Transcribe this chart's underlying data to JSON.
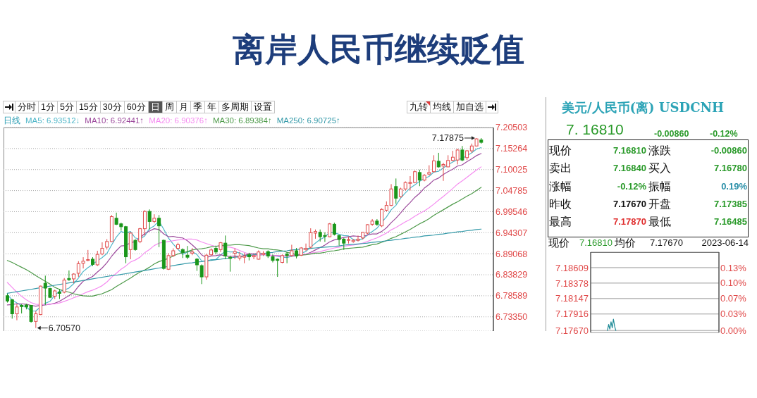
{
  "chart_data": [
    {
      "type": "candlestick",
      "title": "离岸人民币继续贬值",
      "legend_title": "日线",
      "legend": "top left",
      "grid": "y",
      "categories": [
        null,
        null,
        null,
        null,
        null,
        null,
        null,
        null,
        null,
        null,
        null,
        null,
        null,
        null,
        null,
        null,
        null,
        null,
        null,
        null,
        null,
        null,
        null,
        null,
        null,
        null,
        null,
        null,
        null,
        null,
        null,
        null,
        null,
        null,
        null,
        null,
        null,
        null,
        null,
        null,
        null,
        null,
        null,
        null,
        null,
        null,
        null,
        null,
        null,
        null,
        null,
        null,
        null,
        null,
        null,
        null,
        null,
        null,
        null,
        null,
        null,
        null,
        null,
        null,
        null,
        null,
        null,
        null,
        null,
        null,
        null,
        null,
        null,
        null,
        null,
        null,
        null,
        null,
        null,
        null,
        null,
        null,
        null,
        null,
        null,
        null,
        null,
        null,
        null,
        null,
        null,
        null,
        null,
        null,
        null,
        null,
        null,
        null,
        null,
        null,
        null
      ],
      "ohlc": [
        [
          6.786,
          6.791,
          6.769,
          6.773
        ],
        [
          6.776,
          6.778,
          6.729,
          6.741
        ],
        [
          6.741,
          6.766,
          6.725,
          6.758
        ],
        [
          6.762,
          6.765,
          6.742,
          6.759
        ],
        [
          6.763,
          6.766,
          6.752,
          6.758
        ],
        [
          6.762,
          6.763,
          6.719,
          6.722
        ],
        [
          6.722,
          6.748,
          6.7057,
          6.741
        ],
        [
          6.739,
          6.811,
          6.738,
          6.81
        ],
        [
          6.817,
          6.836,
          6.763,
          6.805
        ],
        [
          6.804,
          6.806,
          6.78,
          6.782
        ],
        [
          6.785,
          6.801,
          6.778,
          6.798
        ],
        [
          6.795,
          6.803,
          6.778,
          6.792
        ],
        [
          6.795,
          6.83,
          6.792,
          6.825
        ],
        [
          6.829,
          6.849,
          6.823,
          6.826
        ],
        [
          6.828,
          6.842,
          6.817,
          6.84
        ],
        [
          6.842,
          6.872,
          6.833,
          6.866
        ],
        [
          6.867,
          6.882,
          6.854,
          6.872
        ],
        [
          6.874,
          6.9,
          6.872,
          6.876
        ],
        [
          6.877,
          6.882,
          6.86,
          6.864
        ],
        [
          6.863,
          6.898,
          6.86,
          6.889
        ],
        [
          6.89,
          6.919,
          6.887,
          6.904
        ],
        [
          6.907,
          6.927,
          6.901,
          6.921
        ],
        [
          6.921,
          6.987,
          6.92,
          6.983
        ],
        [
          6.979,
          6.993,
          6.962,
          6.964
        ],
        [
          6.965,
          6.968,
          6.948,
          6.958
        ],
        [
          6.958,
          6.96,
          6.867,
          6.883
        ],
        [
          6.901,
          6.945,
          6.877,
          6.942
        ],
        [
          6.924,
          6.927,
          6.898,
          6.901
        ],
        [
          6.921,
          6.955,
          6.917,
          6.953
        ],
        [
          6.953,
          6.999,
          6.936,
          6.996
        ],
        [
          6.996,
          7.001,
          6.951,
          6.971
        ],
        [
          6.971,
          6.989,
          6.967,
          6.979
        ],
        [
          6.979,
          6.987,
          6.907,
          6.96
        ],
        [
          6.924,
          6.926,
          6.851,
          6.854
        ],
        [
          6.852,
          6.892,
          6.85,
          6.886
        ],
        [
          6.886,
          6.904,
          6.883,
          6.898
        ],
        [
          6.904,
          6.918,
          6.901,
          6.913
        ],
        [
          6.901,
          6.904,
          6.88,
          6.894
        ],
        [
          6.887,
          6.91,
          6.877,
          6.882
        ],
        [
          6.892,
          6.905,
          6.887,
          6.895
        ],
        [
          6.877,
          6.88,
          6.848,
          6.863
        ],
        [
          6.861,
          6.864,
          6.815,
          6.833
        ],
        [
          6.833,
          6.89,
          6.826,
          6.887
        ],
        [
          6.888,
          6.904,
          6.886,
          6.9
        ],
        [
          6.904,
          6.911,
          6.889,
          6.895
        ],
        [
          6.901,
          6.92,
          6.895,
          6.918
        ],
        [
          6.917,
          6.936,
          6.877,
          6.885
        ],
        [
          6.882,
          6.886,
          6.846,
          6.879
        ],
        [
          6.892,
          6.904,
          6.877,
          6.896
        ],
        [
          6.88,
          6.895,
          6.874,
          6.885
        ],
        [
          6.882,
          6.892,
          6.867,
          6.885
        ],
        [
          6.889,
          6.893,
          6.874,
          6.883
        ],
        [
          6.883,
          6.889,
          6.877,
          6.886
        ],
        [
          6.877,
          6.899,
          6.876,
          6.895
        ],
        [
          6.889,
          6.897,
          6.885,
          6.892
        ],
        [
          6.896,
          6.899,
          6.88,
          6.885
        ],
        [
          6.883,
          6.889,
          6.869,
          6.874
        ],
        [
          6.877,
          6.879,
          6.833,
          6.874
        ],
        [
          6.869,
          6.889,
          6.867,
          6.886
        ],
        [
          6.89,
          6.895,
          6.867,
          6.886
        ],
        [
          6.886,
          6.913,
          6.883,
          6.898
        ],
        [
          6.898,
          6.905,
          6.879,
          6.885
        ],
        [
          6.887,
          6.907,
          6.885,
          6.905
        ],
        [
          6.901,
          6.916,
          6.898,
          6.904
        ],
        [
          6.907,
          6.954,
          6.904,
          6.943
        ],
        [
          6.942,
          6.951,
          6.928,
          6.946
        ],
        [
          6.944,
          6.951,
          6.921,
          6.933
        ],
        [
          6.936,
          6.944,
          6.92,
          6.934
        ],
        [
          6.933,
          6.967,
          6.932,
          6.965
        ],
        [
          6.964,
          6.968,
          6.936,
          6.939
        ],
        [
          6.936,
          6.938,
          6.911,
          6.926
        ],
        [
          6.927,
          6.93,
          6.9,
          6.917
        ],
        [
          6.924,
          6.933,
          6.916,
          6.926
        ],
        [
          6.921,
          6.927,
          6.918,
          6.924
        ],
        [
          6.924,
          6.936,
          6.921,
          6.927
        ],
        [
          6.93,
          6.945,
          6.926,
          6.944
        ],
        [
          6.942,
          6.964,
          6.939,
          6.963
        ],
        [
          6.964,
          6.977,
          6.96,
          6.972
        ],
        [
          6.972,
          6.977,
          6.96,
          6.964
        ],
        [
          6.96,
          7.004,
          6.957,
          7.001
        ],
        [
          6.999,
          7.021,
          6.996,
          7.011
        ],
        [
          7.011,
          7.064,
          7.009,
          7.052
        ],
        [
          7.058,
          7.078,
          7.015,
          7.029
        ],
        [
          7.033,
          7.055,
          7.03,
          7.052
        ],
        [
          7.052,
          7.071,
          7.048,
          7.068
        ],
        [
          7.066,
          7.084,
          7.048,
          7.068
        ],
        [
          7.068,
          7.098,
          7.066,
          7.095
        ],
        [
          7.093,
          7.1,
          7.059,
          7.074
        ],
        [
          7.074,
          7.089,
          7.071,
          7.086
        ],
        [
          7.089,
          7.111,
          7.086,
          7.093
        ],
        [
          7.095,
          7.136,
          7.093,
          7.122
        ],
        [
          7.121,
          7.142,
          7.105,
          7.107
        ],
        [
          7.109,
          7.117,
          7.072,
          7.113
        ],
        [
          7.107,
          7.136,
          7.106,
          7.123
        ],
        [
          7.123,
          7.147,
          7.121,
          7.131
        ],
        [
          7.124,
          7.152,
          7.113,
          7.149
        ],
        [
          7.149,
          7.159,
          7.121,
          7.124
        ],
        [
          7.13,
          7.149,
          7.124,
          7.147
        ],
        [
          7.147,
          7.165,
          7.142,
          7.159
        ],
        [
          7.159,
          7.17875,
          7.158,
          7.1767
        ],
        [
          7.17385,
          7.1787,
          7.16485,
          7.1681
        ]
      ],
      "colors": [
        "#1a961a",
        "#1a961a",
        "#e04a4a",
        "#1a961a",
        "#1a961a",
        "#1a961a",
        "#e04a4a",
        "#e04a4a",
        "#1a961a",
        "#1a961a",
        "#e04a4a",
        "#1a961a",
        "#e04a4a",
        "#1a961a",
        "#e04a4a",
        "#e04a4a",
        "#e04a4a",
        "#e04a4a",
        "#1a961a",
        "#e04a4a",
        "#e04a4a",
        "#e04a4a",
        "#e04a4a",
        "#1a961a",
        "#1a961a",
        "#1a961a",
        "#e04a4a",
        "#1a961a",
        "#e04a4a",
        "#e04a4a",
        "#1a961a",
        "#e04a4a",
        "#1a961a",
        "#1a961a",
        "#e04a4a",
        "#e04a4a",
        "#e04a4a",
        "#1a961a",
        "#1a961a",
        "#e04a4a",
        "#1a961a",
        "#1a961a",
        "#e04a4a",
        "#e04a4a",
        "#1a961a",
        "#e04a4a",
        "#1a961a",
        "#1a961a",
        "#e04a4a",
        "#e04a4a",
        "#e04a4a",
        "#1a961a",
        "#e04a4a",
        "#e04a4a",
        "#e04a4a",
        "#1a961a",
        "#1a961a",
        "#1a961a",
        "#e04a4a",
        "#1a961a",
        "#e04a4a",
        "#1a961a",
        "#e04a4a",
        "#e04a4a",
        "#e04a4a",
        "#e04a4a",
        "#1a961a",
        "#1a961a",
        "#e04a4a",
        "#1a961a",
        "#1a961a",
        "#1a961a",
        "#e04a4a",
        "#e04a4a",
        "#e04a4a",
        "#e04a4a",
        "#e04a4a",
        "#e04a4a",
        "#1a961a",
        "#e04a4a",
        "#e04a4a",
        "#e04a4a",
        "#1a961a",
        "#e04a4a",
        "#e04a4a",
        "#e04a4a",
        "#e04a4a",
        "#1a961a",
        "#e04a4a",
        "#e04a4a",
        "#e04a4a",
        "#1a961a",
        "#e04a4a",
        "#e04a4a",
        "#e04a4a",
        "#e04a4a",
        "#1a961a",
        "#e04a4a",
        "#e04a4a",
        "#e04a4a",
        "#1a961a"
      ],
      "series": [
        {
          "type": "line",
          "name": "MA5: 6.93512↓",
          "color": "#4fb6c8",
          "values": [
            6.789,
            6.776,
            6.768,
            6.762,
            6.758,
            6.748,
            6.748,
            6.758,
            6.767,
            6.772,
            6.787,
            6.797,
            6.8,
            6.805,
            6.816,
            6.83,
            6.846,
            6.856,
            6.864,
            6.873,
            6.881,
            6.891,
            6.912,
            6.932,
            6.946,
            6.942,
            6.946,
            6.93,
            6.927,
            6.935,
            6.953,
            6.96,
            6.972,
            6.952,
            6.93,
            6.915,
            6.902,
            6.889,
            6.895,
            6.896,
            6.889,
            6.873,
            6.872,
            6.876,
            6.876,
            6.887,
            6.897,
            6.895,
            6.895,
            6.893,
            6.886,
            6.886,
            6.887,
            6.887,
            6.888,
            6.888,
            6.886,
            6.884,
            6.882,
            6.881,
            6.884,
            6.886,
            6.892,
            6.896,
            6.907,
            6.917,
            6.926,
            6.932,
            6.944,
            6.943,
            6.939,
            6.936,
            6.935,
            6.926,
            6.924,
            6.928,
            6.937,
            6.946,
            6.954,
            6.969,
            6.982,
            7,
            7.011,
            7.029,
            7.042,
            7.054,
            7.062,
            7.071,
            7.078,
            7.083,
            7.094,
            7.096,
            7.104,
            7.112,
            7.119,
            7.125,
            7.128,
            7.135,
            7.142,
            7.151,
            7.155
          ]
        },
        {
          "type": "line",
          "name": "MA10: 6.92441↑",
          "color": "#9c4a9c",
          "values": [
            6.763,
            6.764,
            6.766,
            6.766,
            6.765,
            6.762,
            6.76,
            6.762,
            6.763,
            6.765,
            6.767,
            6.772,
            6.779,
            6.786,
            6.794,
            6.809,
            6.822,
            6.828,
            6.834,
            6.845,
            6.855,
            6.868,
            6.884,
            6.898,
            6.91,
            6.911,
            6.918,
            6.921,
            6.93,
            6.941,
            6.947,
            6.953,
            6.951,
            6.94,
            6.933,
            6.934,
            6.931,
            6.93,
            6.923,
            6.913,
            6.902,
            6.888,
            6.881,
            6.885,
            6.886,
            6.888,
            6.885,
            6.884,
            6.885,
            6.884,
            6.886,
            6.891,
            6.891,
            6.891,
            6.89,
            6.887,
            6.886,
            6.886,
            6.885,
            6.885,
            6.886,
            6.886,
            6.888,
            6.889,
            6.894,
            6.9,
            6.906,
            6.912,
            6.92,
            6.925,
            6.928,
            6.931,
            6.933,
            6.935,
            6.934,
            6.934,
            6.937,
            6.94,
            6.94,
            6.946,
            6.955,
            6.968,
            6.979,
            6.992,
            7.006,
            7.018,
            7.031,
            7.041,
            7.054,
            7.063,
            7.074,
            7.079,
            7.088,
            7.095,
            7.101,
            7.109,
            7.112,
            7.12,
            7.127,
            7.135,
            7.14
          ]
        },
        {
          "type": "line",
          "name": "MA20: 6.90376↑",
          "color": "#f58cf0",
          "values": [
            6.819,
            6.807,
            6.795,
            6.785,
            6.776,
            6.769,
            6.765,
            6.764,
            6.764,
            6.765,
            6.766,
            6.768,
            6.772,
            6.776,
            6.781,
            6.785,
            6.791,
            6.796,
            6.8,
            6.805,
            6.811,
            6.82,
            6.832,
            6.842,
            6.852,
            6.86,
            6.87,
            6.875,
            6.882,
            6.893,
            6.901,
            6.911,
            6.917,
            6.919,
            6.921,
            6.923,
            6.925,
            6.926,
            6.927,
            6.927,
            6.925,
            6.92,
            6.916,
            6.912,
            6.909,
            6.911,
            6.908,
            6.907,
            6.904,
            6.899,
            6.894,
            6.89,
            6.886,
            6.888,
            6.888,
            6.888,
            6.886,
            6.885,
            6.885,
            6.884,
            6.886,
            6.889,
            6.89,
            6.89,
            6.892,
            6.894,
            6.896,
            6.899,
            6.902,
            6.905,
            6.907,
            6.909,
            6.911,
            6.912,
            6.914,
            6.917,
            6.921,
            6.926,
            6.93,
            6.936,
            6.942,
            6.95,
            6.956,
            6.963,
            6.97,
            6.976,
            6.984,
            6.991,
            6.997,
            7.005,
            7.014,
            7.024,
            7.033,
            7.043,
            7.053,
            7.064,
            7.072,
            7.081,
            7.09,
            7.099,
            7.107
          ]
        },
        {
          "type": "line",
          "name": "MA30: 6.89384↑",
          "color": "#4e9a4a",
          "values": [
            6.874,
            6.869,
            6.863,
            6.857,
            6.851,
            6.844,
            6.836,
            6.829,
            6.822,
            6.815,
            6.807,
            6.802,
            6.798,
            6.795,
            6.791,
            6.788,
            6.786,
            6.785,
            6.785,
            6.788,
            6.791,
            6.796,
            6.801,
            6.809,
            6.816,
            6.823,
            6.83,
            6.838,
            6.845,
            6.85,
            6.857,
            6.865,
            6.871,
            6.875,
            6.879,
            6.885,
            6.89,
            6.893,
            6.896,
            6.9,
            6.902,
            6.903,
            6.905,
            6.908,
            6.909,
            6.911,
            6.912,
            6.912,
            6.913,
            6.913,
            6.912,
            6.911,
            6.908,
            6.905,
            6.903,
            6.903,
            6.901,
            6.9,
            6.898,
            6.894,
            6.892,
            6.888,
            6.887,
            6.888,
            6.89,
            6.892,
            6.892,
            6.894,
            6.897,
            6.898,
            6.9,
            6.903,
            6.904,
            6.905,
            6.906,
            6.907,
            6.91,
            6.913,
            6.915,
            6.919,
            6.923,
            6.929,
            6.933,
            6.939,
            6.945,
            6.951,
            6.958,
            6.965,
            6.971,
            6.978,
            6.986,
            6.993,
            7,
            7.007,
            7.014,
            7.02,
            7.027,
            7.034,
            7.04,
            7.048,
            7.056
          ]
        },
        {
          "type": "line",
          "name": "MA250: 6.90725↑",
          "color": "#3399a8",
          "values": [
            6.792,
            6.794,
            6.796,
            6.798,
            6.8,
            6.802,
            6.804,
            6.806,
            6.808,
            6.81,
            6.812,
            6.814,
            6.816,
            6.818,
            6.82,
            6.822,
            6.824,
            6.826,
            6.828,
            6.83,
            6.832,
            6.834,
            6.836,
            6.837,
            6.839,
            6.841,
            6.843,
            6.845,
            6.847,
            6.849,
            6.851,
            6.853,
            6.855,
            6.857,
            6.859,
            6.861,
            6.863,
            6.865,
            6.867,
            6.868,
            6.87,
            6.871,
            6.873,
            6.874,
            6.876,
            6.877,
            6.879,
            6.88,
            6.882,
            6.883,
            6.885,
            6.886,
            6.888,
            6.89,
            6.891,
            6.893,
            6.894,
            6.896,
            6.897,
            6.898,
            6.9,
            6.901,
            6.902,
            6.903,
            6.904,
            6.905,
            6.906,
            6.907,
            6.908,
            6.909,
            6.91,
            6.912,
            6.913,
            6.914,
            6.915,
            6.916,
            6.917,
            6.919,
            6.92,
            6.921,
            6.923,
            6.924,
            6.926,
            6.927,
            6.929,
            6.93,
            6.932,
            6.933,
            6.935,
            6.936,
            6.937,
            6.939,
            6.94,
            6.942,
            6.943,
            6.945,
            6.946,
            6.948,
            6.949,
            6.951,
            6.952
          ]
        }
      ],
      "ylim": [
        6.698,
        7.20503
      ],
      "yticks": [
        7.20503,
        7.15264,
        7.10025,
        7.04785,
        6.99546,
        6.94307,
        6.89068,
        6.83829,
        6.78589,
        {
          "value": 6.7335,
          "label": "6.73350"
        }
      ],
      "annotations": [
        "分时",
        "1分",
        "5分",
        "15分",
        "30分",
        "60分",
        "日",
        "周",
        "月",
        "季",
        "年",
        "多周期",
        "设置",
        "九转",
        "均线",
        "加自选",
        "7.17875",
        "6.70570"
      ]
    },
    {
      "type": "other",
      "title": "美元/人民币(离) USDCNH",
      "annotations": [
        "7. 16810",
        "-0.00860",
        "-0.12%",
        "现价",
        "7.16810",
        "涨跌",
        "-0.00860",
        "卖出",
        "7.16840",
        "买入",
        "7.16780",
        "涨幅",
        "-0.12%",
        "振幅",
        "0.19%",
        "昨收",
        "7.17670",
        "开盘",
        "7.17385",
        "最高",
        "7.17870",
        "最低",
        "7.16485"
      ]
    },
    {
      "type": "line",
      "grid": "y",
      "categories": [
        null,
        null,
        null,
        null,
        null,
        null,
        null,
        null,
        null,
        null,
        null,
        null,
        null,
        null,
        null,
        null,
        null,
        null,
        null,
        null,
        null,
        null,
        null,
        null,
        null,
        null,
        null,
        null,
        null,
        null,
        null,
        null,
        null,
        null,
        null,
        null,
        null,
        null,
        null,
        null,
        null,
        null,
        null,
        null,
        null,
        null,
        null,
        null,
        null,
        null,
        null,
        null,
        null,
        null,
        null,
        null,
        null,
        null,
        null,
        null,
        null,
        null,
        null,
        null,
        null,
        null,
        null,
        null,
        null,
        null,
        null,
        null,
        null,
        null,
        null,
        null,
        null,
        null,
        null,
        null,
        null,
        null,
        null,
        null,
        null,
        null,
        null,
        null,
        null,
        null,
        null,
        null,
        null,
        null,
        null,
        null,
        null,
        null,
        null,
        null,
        null,
        null,
        null,
        null,
        null,
        null,
        null,
        null
      ],
      "series": [
        {
          "color": "#1d8a96",
          "values": [
            null,
            null,
            null,
            null,
            null,
            null,
            null,
            null,
            null,
            null,
            null,
            null,
            null,
            null,
            7.1767,
            7.1776,
            7.1769,
            7.178,
            7.1771,
            7.1784,
            7.1773,
            7.1767,
            null,
            null,
            null,
            null,
            null,
            null,
            null,
            null,
            null,
            null,
            null,
            null,
            null,
            null,
            null,
            null,
            null,
            null,
            null,
            null,
            null,
            null,
            null,
            null,
            null,
            null,
            null,
            null,
            null,
            null,
            null,
            null,
            null,
            null,
            null,
            null,
            null,
            null,
            null,
            null,
            null,
            null,
            null,
            null,
            null,
            null,
            null,
            null,
            null,
            null,
            null,
            null,
            null,
            null,
            null,
            null,
            null,
            null,
            null,
            null,
            null,
            null,
            null,
            null,
            null,
            null,
            null,
            null,
            null,
            null,
            null,
            null,
            null,
            null,
            null,
            null,
            null,
            null,
            null,
            null,
            null,
            null,
            null,
            null,
            null,
            null
          ]
        }
      ],
      "ylim": [
        7.1764,
        7.1884
      ],
      "yticks": [
        7.18609,
        7.18378,
        7.18147,
        7.17916,
        {
          "value": 7.1767,
          "label": "7.17670"
        }
      ],
      "y2lim": [
        -0.0042,
        0.163
      ],
      "y2ticks": [
        {
          "value": 0.1308,
          "label": "0.13%"
        },
        {
          "value": 0.0987,
          "label": "0.10%"
        },
        {
          "value": 0.0665,
          "label": "0.07%"
        },
        {
          "value": 0.0343,
          "label": "0.03%"
        },
        {
          "value": 0,
          "label": "0.00%"
        }
      ],
      "annotations": [
        "现价",
        "7.16810",
        "均价",
        "7.17670",
        "2023-06-14"
      ]
    }
  ]
}
